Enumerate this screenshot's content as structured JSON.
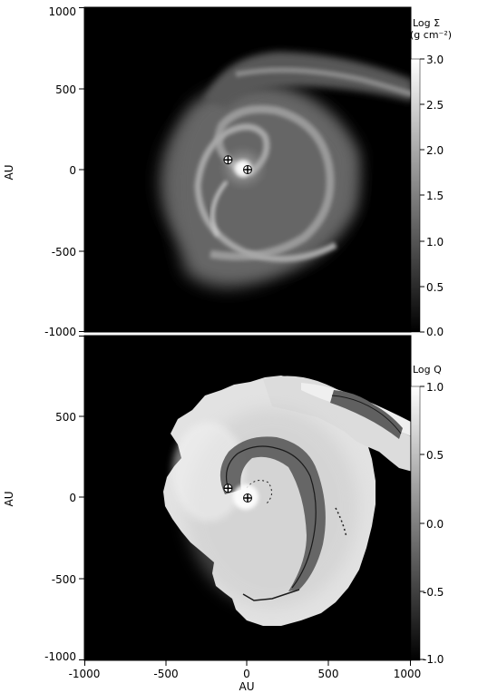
{
  "figure": {
    "panels": [
      {
        "id": "surface-density",
        "y_axis_label": "AU",
        "y_ticks": [
          "1000",
          "500",
          "0",
          "-500",
          "-1000"
        ],
        "colorbar": {
          "title_line1": "Log Σ",
          "title_line2": "(g cm⁻²)",
          "ticks": [
            "3.0",
            "2.5",
            "2.0",
            "1.5",
            "1.0",
            "0.5",
            "0.0"
          ]
        }
      },
      {
        "id": "toomre-q",
        "y_axis_label": "AU",
        "y_ticks": [
          "1000",
          "500",
          "0",
          "-500",
          "-1000"
        ],
        "colorbar": {
          "title_line1": "Log Q",
          "ticks": [
            "1.0",
            "0.5",
            "0.0",
            "-0.5",
            "-1.0"
          ]
        }
      }
    ],
    "x_axis": {
      "label": "AU",
      "ticks": [
        "-1000",
        "-500",
        "0",
        "500",
        "1000"
      ]
    },
    "markers": [
      {
        "name": "star-1",
        "x_au": -120,
        "y_au": 60
      },
      {
        "name": "star-2",
        "x_au": 0,
        "y_au": 0
      }
    ]
  }
}
